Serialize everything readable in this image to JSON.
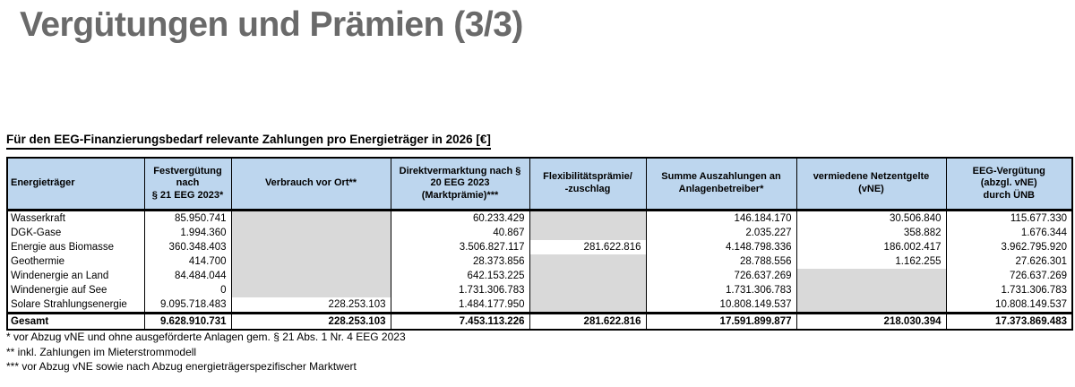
{
  "page": {
    "title": "Vergütungen und Prämien (3/3)"
  },
  "colors": {
    "title_color": "#6A6A6A",
    "header_bg": "#BDD6EE",
    "empty_cell_bg": "#D9D9D9",
    "border_color": "#000000"
  },
  "table": {
    "caption": "Für den EEG-Finanzierungsbedarf relevante Zahlungen pro Energieträger in 2026 [€]",
    "columns": [
      {
        "id": "energietraeger",
        "label": "Energieträger"
      },
      {
        "id": "festverguetung",
        "label": "Festvergütung\nnach\n§ 21 EEG 2023*"
      },
      {
        "id": "verbrauch-vor-ort",
        "label": "Verbrauch vor Ort**"
      },
      {
        "id": "direktvermarktung",
        "label": "Direktvermarktung nach §\n20 EEG 2023\n(Marktprämie)***"
      },
      {
        "id": "flexibilitaetspraemie",
        "label": "Flexibilitätsprämie/\n-zuschlag"
      },
      {
        "id": "summe-auszahlungen",
        "label": "Summe Auszahlungen an\nAnlagenbetreiber*"
      },
      {
        "id": "vne",
        "label": "vermiedene Netzentgelte\n(vNE)"
      },
      {
        "id": "eeg-verguetung",
        "label": "EEG-Vergütung\n(abzgl. vNE)\ndurch ÜNB"
      }
    ],
    "rows": [
      {
        "name": "Wasserkraft",
        "values": [
          "85.950.741",
          null,
          "60.233.429",
          null,
          "146.184.170",
          "30.506.840",
          "115.677.330"
        ]
      },
      {
        "name": "DGK-Gase",
        "values": [
          "1.994.360",
          null,
          "40.867",
          null,
          "2.035.227",
          "358.882",
          "1.676.344"
        ]
      },
      {
        "name": "Energie aus Biomasse",
        "values": [
          "360.348.403",
          null,
          "3.506.827.117",
          "281.622.816",
          "4.148.798.336",
          "186.002.417",
          "3.962.795.920"
        ]
      },
      {
        "name": "Geothermie",
        "values": [
          "414.700",
          null,
          "28.373.856",
          null,
          "28.788.556",
          "1.162.255",
          "27.626.301"
        ]
      },
      {
        "name": "Windenergie an Land",
        "values": [
          "84.484.044",
          null,
          "642.153.225",
          null,
          "726.637.269",
          null,
          "726.637.269"
        ]
      },
      {
        "name": "Windenergie auf See",
        "values": [
          "0",
          null,
          "1.731.306.783",
          null,
          "1.731.306.783",
          null,
          "1.731.306.783"
        ]
      },
      {
        "name": "Solare Strahlungsenergie",
        "values": [
          "9.095.718.483",
          "228.253.103",
          "1.484.177.950",
          null,
          "10.808.149.537",
          null,
          "10.808.149.537"
        ]
      }
    ],
    "total": {
      "name": "Gesamt",
      "values": [
        "9.628.910.731",
        "228.253.103",
        "7.453.113.226",
        "281.622.816",
        "17.591.899.877",
        "218.030.394",
        "17.373.869.483"
      ]
    }
  },
  "footnotes": [
    "* vor Abzug vNE und ohne ausgeförderte Anlagen gem. § 21 Abs. 1 Nr. 4 EEG 2023",
    "** inkl. Zahlungen im Mieterstrommodell",
    "*** vor Abzug vNE sowie nach Abzug energieträgerspezifischer Marktwert"
  ]
}
